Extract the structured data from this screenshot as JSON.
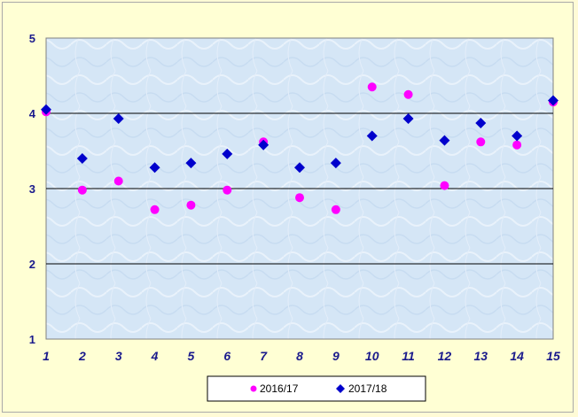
{
  "chart_data": {
    "type": "scatter",
    "title": "",
    "xlabel": "",
    "ylabel": "",
    "xlim": [
      1,
      15
    ],
    "ylim": [
      1,
      5
    ],
    "x_ticks": [
      "1",
      "2",
      "3",
      "4",
      "5",
      "6",
      "7",
      "8",
      "9",
      "10",
      "11",
      "12",
      "13",
      "14",
      "15"
    ],
    "y_ticks": [
      "1",
      "2",
      "3",
      "4",
      "5"
    ],
    "grid": "horizontal major lines",
    "legend_position": "bottom-center",
    "plot_background": "#dbeaf7",
    "series": [
      {
        "name": "2016/17",
        "marker": "circle",
        "color": "#ff00ff",
        "x": [
          1,
          2,
          3,
          4,
          5,
          6,
          7,
          8,
          9,
          10,
          11,
          12,
          13,
          14,
          15
        ],
        "values": [
          4.02,
          2.98,
          3.1,
          2.72,
          2.78,
          2.98,
          3.62,
          2.88,
          2.72,
          4.35,
          4.25,
          3.04,
          3.62,
          3.58,
          4.15
        ]
      },
      {
        "name": "2017/18",
        "marker": "diamond",
        "color": "#0000cc",
        "x": [
          1,
          2,
          3,
          4,
          5,
          6,
          7,
          8,
          9,
          10,
          11,
          12,
          13,
          14,
          15
        ],
        "values": [
          4.05,
          3.4,
          3.93,
          3.28,
          3.34,
          3.46,
          3.58,
          3.28,
          3.34,
          3.7,
          3.93,
          3.64,
          3.87,
          3.7,
          4.17
        ]
      }
    ]
  }
}
